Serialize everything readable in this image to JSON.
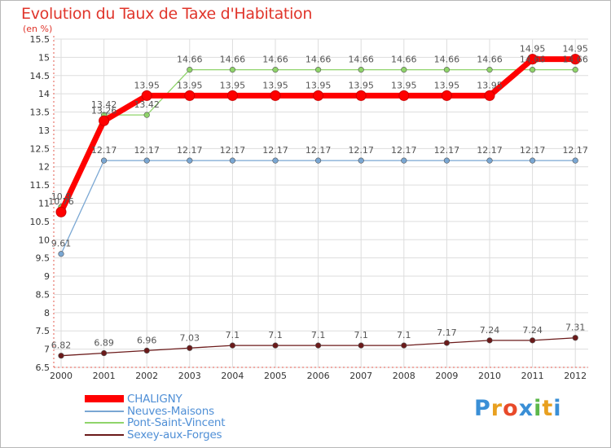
{
  "chart_data": {
    "type": "line",
    "title": "Evolution du Taux de Taxe d'Habitation",
    "ylabel": "(en %)",
    "xlabel": "",
    "ylim": [
      6.5,
      15.5
    ],
    "ytick_step": 0.5,
    "yticks": [
      "6.5",
      "7",
      "7.5",
      "8",
      "8.5",
      "9",
      "9.5",
      "10",
      "10.5",
      "11",
      "11.5",
      "12",
      "12.5",
      "13",
      "13.5",
      "14",
      "14.5",
      "15",
      "15.5"
    ],
    "categories": [
      "2000",
      "2001",
      "2002",
      "2003",
      "2004",
      "2005",
      "2006",
      "2007",
      "2008",
      "2009",
      "2010",
      "2011",
      "2012"
    ],
    "grid": true,
    "legend_position": "bottom-left",
    "series": [
      {
        "name": "Sexey-aux-Forges",
        "color": "#6b1a1a",
        "values": [
          6.82,
          6.89,
          6.96,
          7.03,
          7.1,
          7.1,
          7.1,
          7.1,
          7.1,
          7.17,
          7.24,
          7.24,
          7.31
        ],
        "labels": [
          "6.82",
          "6.89",
          "6.96",
          "7.03",
          "7.1",
          "7.1",
          "7.1",
          "7.1",
          "7.1",
          "7.17",
          "7.24",
          "7.24",
          "7.31"
        ]
      },
      {
        "name": "Neuves-Maisons",
        "color": "#7aa7d3",
        "values": [
          9.61,
          12.17,
          12.17,
          12.17,
          12.17,
          12.17,
          12.17,
          12.17,
          12.17,
          12.17,
          12.17,
          12.17,
          12.17
        ],
        "labels": [
          "9.61",
          "12.17",
          "12.17",
          "12.17",
          "12.17",
          "12.17",
          "12.17",
          "12.17",
          "12.17",
          "12.17",
          "12.17",
          "12.17",
          "12.17"
        ]
      },
      {
        "name": "Pont-Saint-Vincent",
        "color": "#8fd46a",
        "values": [
          10.9,
          13.42,
          13.42,
          14.66,
          14.66,
          14.66,
          14.66,
          14.66,
          14.66,
          14.66,
          14.66,
          14.66,
          14.66
        ],
        "labels": [
          "10.9",
          "13.42",
          "13.42",
          "14.66",
          "14.66",
          "14.66",
          "14.66",
          "14.66",
          "14.66",
          "14.66",
          "14.66",
          "14.66",
          "14.66"
        ]
      },
      {
        "name": "CHALIGNY",
        "color": "#ff0000",
        "values": [
          10.76,
          13.26,
          13.95,
          13.95,
          13.95,
          13.95,
          13.95,
          13.95,
          13.95,
          13.95,
          13.95,
          14.95,
          14.95
        ],
        "labels": [
          "10.76",
          "13.26",
          "13.95",
          "13.95",
          "13.95",
          "13.95",
          "13.95",
          "13.95",
          "13.95",
          "13.95",
          "13.95",
          "14.95",
          "14.95"
        ]
      }
    ]
  },
  "legend": {
    "items": [
      {
        "label": "CHALIGNY",
        "color": "#ff0000"
      },
      {
        "label": "Neuves-Maisons",
        "color": "#7aa7d3"
      },
      {
        "label": "Pont-Saint-Vincent",
        "color": "#8fd46a"
      },
      {
        "label": "Sexey-aux-Forges",
        "color": "#6b1a1a"
      }
    ]
  },
  "brand": {
    "letters": [
      "P",
      "r",
      "o",
      "x",
      "i",
      "t",
      "i"
    ],
    "colors": [
      "#3a8fd6",
      "#e8a020",
      "#e84a2a",
      "#3a8fd6",
      "#5cb84a",
      "#e8a020",
      "#3a8fd6"
    ]
  }
}
